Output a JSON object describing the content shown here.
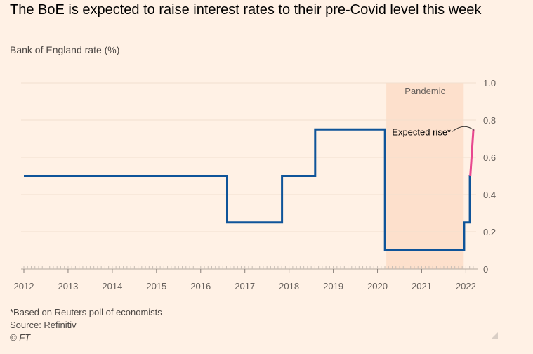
{
  "chart_data": {
    "type": "line",
    "title": "The BoE is expected to raise interest rates to their pre-Covid level this week",
    "subtitle": "Bank of England rate (%)",
    "ylim": [
      0,
      1.0
    ],
    "yticks": [
      0,
      0.2,
      0.4,
      0.6,
      0.8,
      1.0
    ],
    "ytick_labels": [
      "0",
      "0.2",
      "0.4",
      "0.6",
      "0.8",
      "1.0"
    ],
    "xlim": [
      2012.0,
      2022.2
    ],
    "xticks": [
      2012,
      2013,
      2014,
      2015,
      2016,
      2017,
      2018,
      2019,
      2020,
      2021,
      2022
    ],
    "xtick_labels": [
      "2012",
      "2013",
      "2014",
      "2015",
      "2016",
      "2017",
      "2018",
      "2019",
      "2020",
      "2021",
      "2022"
    ],
    "series": [
      {
        "name": "Bank of England rate",
        "color": "#0f5499",
        "points": [
          [
            2012.0,
            0.5
          ],
          [
            2016.6,
            0.5
          ],
          [
            2016.6,
            0.25
          ],
          [
            2017.84,
            0.25
          ],
          [
            2017.84,
            0.5
          ],
          [
            2018.59,
            0.5
          ],
          [
            2018.59,
            0.75
          ],
          [
            2020.17,
            0.75
          ],
          [
            2020.17,
            0.1
          ],
          [
            2021.96,
            0.1
          ],
          [
            2021.96,
            0.25
          ],
          [
            2022.09,
            0.25
          ],
          [
            2022.09,
            0.5
          ],
          [
            2022.1,
            0.5
          ]
        ]
      },
      {
        "name": "Expected rise",
        "color": "#e8488f",
        "points": [
          [
            2022.1,
            0.5
          ],
          [
            2022.17,
            0.75
          ]
        ]
      }
    ],
    "shaded_regions": [
      {
        "label": "Pandemic",
        "x_start": 2020.2,
        "x_end": 2021.95,
        "color": "#fde0cc"
      }
    ],
    "annotations": [
      {
        "text": "Expected rise*",
        "x": 2022.17,
        "y": 0.75
      }
    ],
    "grid": true
  },
  "footer": {
    "note": "*Based on Reuters poll of economists",
    "source": "Source: Refinitiv",
    "credit": "© FT"
  }
}
